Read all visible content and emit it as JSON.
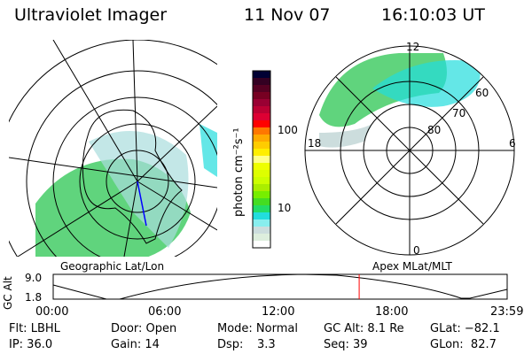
{
  "header": {
    "instrument": "Ultraviolet Imager",
    "date": "11 Nov 07",
    "time": "16:10:03 UT"
  },
  "colorbar": {
    "unit_label": "photon cm⁻²s⁻¹",
    "ticks": [
      "100",
      "10"
    ],
    "colors": [
      "#000033",
      "#330022",
      "#550022",
      "#770022",
      "#990033",
      "#bb0033",
      "#dd0033",
      "#ff0000",
      "#ff7700",
      "#ffaa00",
      "#ffcc00",
      "#ffee00",
      "#ffff88",
      "#eeff00",
      "#ddff00",
      "#ccff00",
      "#aaee00",
      "#77ee00",
      "#44dd22",
      "#22dd66",
      "#22dddd",
      "#88eeee",
      "#ccdddd",
      "#ddeedd",
      "#ffffff"
    ]
  },
  "left_map": {
    "label": "Geographic Lat/Lon"
  },
  "right_map": {
    "label": "Apex MLat/MLT",
    "mlt_labels": {
      "top": "12",
      "left": "18",
      "right": "6",
      "bottom": "0"
    },
    "lat_labels": [
      "60",
      "70",
      "80"
    ]
  },
  "altitude_plot": {
    "ylabel": "GC Alt",
    "y_ticks": [
      "9.0",
      "1.8"
    ],
    "x_ticks": [
      "00:00",
      "06:00",
      "12:00",
      "18:00",
      "23:59"
    ],
    "current_time_fraction": 0.674
  },
  "info": {
    "filter": "Flt: LBHL",
    "door": "Door: Open",
    "mode": "Mode: Normal",
    "gc_alt": "GC Alt: 8.1 Re",
    "glat": "GLat: −82.1",
    "ip": "IP: 36.0",
    "gain": "Gain: 14",
    "dsp_label": "Dsp:",
    "dsp_value": "3.3",
    "seq": "Seq: 39",
    "glon": "GLon:  82.7"
  }
}
